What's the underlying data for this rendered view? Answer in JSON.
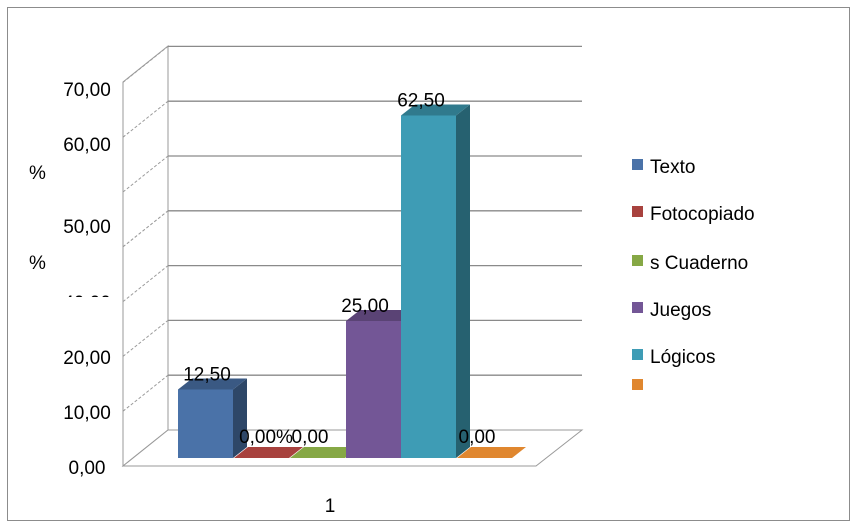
{
  "chart_data": {
    "type": "bar",
    "categories": [
      "1"
    ],
    "series": [
      {
        "name": "Texto",
        "values": [
          12.5
        ],
        "color": "#4A72A8",
        "label": "12,50"
      },
      {
        "name": "Fotocopiado",
        "values": [
          0
        ],
        "color": "#A8423E",
        "label": "0,00%"
      },
      {
        "name": "s Cuaderno",
        "values": [
          0
        ],
        "color": "#86A845",
        "label": "0,00"
      },
      {
        "name": "Juegos",
        "values": [
          25
        ],
        "color": "#735696",
        "label": "25,00"
      },
      {
        "name": "Lógicos",
        "values": [
          62.5
        ],
        "color": "#3E9CB5",
        "label": "62,50"
      },
      {
        "name": "",
        "values": [
          0
        ],
        "color": "#E0872F",
        "label": "0,00"
      }
    ],
    "y_tick_labels": [
      "0,00",
      "10,00",
      "20,00",
      "40,00",
      "50,00",
      "60,00",
      "70,00"
    ],
    "y_unit_labels": [
      "%",
      "%"
    ],
    "ylim": [
      0,
      70
    ],
    "grid": true,
    "legend": "right",
    "three_d": true
  }
}
